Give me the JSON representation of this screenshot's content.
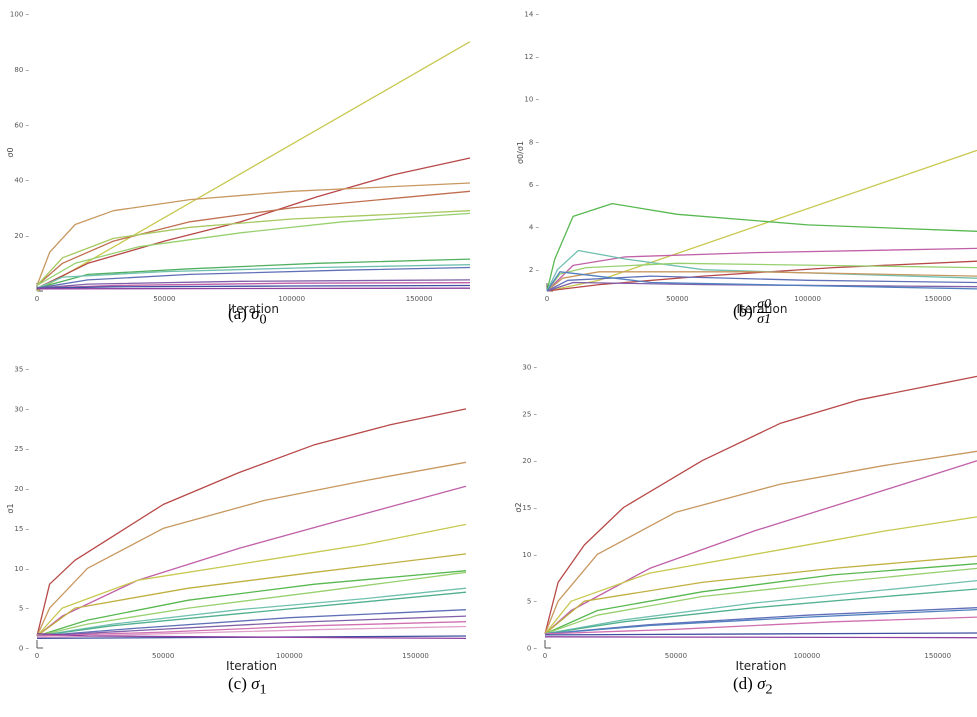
{
  "chart_data": [
    {
      "id": "a",
      "type": "line",
      "caption_prefix": "(a) ",
      "caption_symbol": "σ",
      "caption_sub": "0",
      "ylabel": "σ0",
      "xlabel": "Iteration",
      "xlim": [
        0,
        170000
      ],
      "ylim": [
        0,
        100
      ],
      "xticks": [
        0,
        50000,
        100000,
        150000
      ],
      "yticks": [
        20,
        40,
        60,
        80,
        100
      ],
      "series": [
        {
          "color": "#c8c850",
          "x": [
            0,
            170000
          ],
          "y": [
            0,
            90
          ]
        },
        {
          "color": "#b84848",
          "x": [
            0,
            20000,
            50000,
            80000,
            110000,
            140000,
            170000
          ],
          "y": [
            1,
            10,
            18,
            25,
            34,
            42,
            48
          ]
        },
        {
          "color": "#c89860",
          "x": [
            0,
            5000,
            15000,
            30000,
            60000,
            100000,
            170000
          ],
          "y": [
            2,
            14,
            24,
            29,
            33,
            36,
            39
          ]
        },
        {
          "color": "#c07050",
          "x": [
            0,
            10000,
            30000,
            60000,
            100000,
            170000
          ],
          "y": [
            2,
            10,
            18,
            25,
            30,
            36
          ]
        },
        {
          "color": "#a8c860",
          "x": [
            0,
            10000,
            30000,
            60000,
            100000,
            170000
          ],
          "y": [
            2,
            12,
            19,
            23,
            26,
            29
          ]
        },
        {
          "color": "#98d070",
          "x": [
            0,
            15000,
            40000,
            80000,
            120000,
            170000
          ],
          "y": [
            2,
            10,
            16,
            21,
            25,
            28
          ]
        },
        {
          "color": "#50b060",
          "x": [
            0,
            20000,
            60000,
            110000,
            170000
          ],
          "y": [
            1,
            6,
            8,
            10,
            11.5
          ]
        },
        {
          "color": "#70c0b0",
          "x": [
            0,
            10000,
            50000,
            110000,
            170000
          ],
          "y": [
            1,
            5,
            7,
            8.5,
            9.5
          ]
        },
        {
          "color": "#6070b8",
          "x": [
            0,
            20000,
            60000,
            120000,
            170000
          ],
          "y": [
            1,
            4,
            6,
            7.5,
            8.5
          ]
        },
        {
          "color": "#8060a8",
          "x": [
            0,
            20000,
            80000,
            170000
          ],
          "y": [
            1,
            2.5,
            3.5,
            4
          ]
        },
        {
          "color": "#c060a8",
          "x": [
            0,
            30000,
            100000,
            170000
          ],
          "y": [
            1,
            2,
            2.8,
            3
          ]
        },
        {
          "color": "#4050a0",
          "x": [
            0,
            30000,
            100000,
            170000
          ],
          "y": [
            1,
            1.5,
            1.8,
            2
          ]
        },
        {
          "color": "#9040a0",
          "x": [
            0,
            170000
          ],
          "y": [
            0.8,
            1
          ]
        }
      ]
    },
    {
      "id": "b",
      "type": "line",
      "caption_prefix": "(b) ",
      "caption_num": "σ0",
      "caption_den": "σ1",
      "ylabel": "σ0/σ1",
      "xlabel": "Iteration",
      "xlim": [
        0,
        165000
      ],
      "ylim": [
        1,
        14
      ],
      "xticks": [
        0,
        50000,
        100000,
        150000
      ],
      "yticks": [
        2,
        4,
        6,
        8,
        10,
        12,
        14
      ],
      "series": [
        {
          "color": "#c8c850",
          "x": [
            0,
            20000,
            165000
          ],
          "y": [
            1,
            1.5,
            7.6
          ]
        },
        {
          "color": "#58b850",
          "x": [
            0,
            3000,
            10000,
            25000,
            50000,
            100000,
            165000
          ],
          "y": [
            1,
            2.5,
            4.5,
            5.1,
            4.6,
            4.1,
            3.8
          ]
        },
        {
          "color": "#c060a8",
          "x": [
            0,
            10000,
            30000,
            80000,
            165000
          ],
          "y": [
            1,
            2.2,
            2.6,
            2.8,
            3.0
          ]
        },
        {
          "color": "#b84848",
          "x": [
            0,
            20000,
            60000,
            110000,
            165000
          ],
          "y": [
            1,
            1.3,
            1.7,
            2.1,
            2.4
          ]
        },
        {
          "color": "#70c0b0",
          "x": [
            0,
            4000,
            12000,
            30000,
            60000,
            165000
          ],
          "y": [
            1,
            2.0,
            2.9,
            2.5,
            2.0,
            1.6
          ]
        },
        {
          "color": "#98d070",
          "x": [
            0,
            5000,
            15000,
            50000,
            165000
          ],
          "y": [
            1,
            1.8,
            2.1,
            2.3,
            2.1
          ]
        },
        {
          "color": "#c89860",
          "x": [
            0,
            6000,
            20000,
            80000,
            165000
          ],
          "y": [
            1,
            1.6,
            1.9,
            1.9,
            1.7
          ]
        },
        {
          "color": "#6070b8",
          "x": [
            0,
            8000,
            40000,
            100000,
            165000
          ],
          "y": [
            1,
            1.5,
            1.7,
            1.5,
            1.4
          ]
        },
        {
          "color": "#8060a8",
          "x": [
            0,
            10000,
            60000,
            165000
          ],
          "y": [
            1,
            1.4,
            1.3,
            1.2
          ]
        },
        {
          "color": "#5080c0",
          "x": [
            0,
            5000,
            40000,
            165000
          ],
          "y": [
            1,
            1.9,
            1.4,
            1.1
          ]
        }
      ]
    },
    {
      "id": "c",
      "type": "line",
      "caption_prefix": "(c) ",
      "caption_symbol": "σ",
      "caption_sub": "1",
      "ylabel": "σ1",
      "xlabel": "Iteration",
      "xlim": [
        0,
        170000
      ],
      "ylim": [
        0,
        35
      ],
      "xticks": [
        0,
        50000,
        100000,
        150000
      ],
      "yticks": [
        0,
        5,
        10,
        15,
        20,
        25,
        30,
        35
      ],
      "series": [
        {
          "color": "#b84848",
          "x": [
            0,
            5000,
            15000,
            30000,
            50000,
            80000,
            110000,
            140000,
            170000
          ],
          "y": [
            1.5,
            8,
            11,
            14,
            18,
            22,
            25.5,
            28,
            30
          ]
        },
        {
          "color": "#c89860",
          "x": [
            0,
            5000,
            20000,
            50000,
            90000,
            130000,
            170000
          ],
          "y": [
            1.5,
            5,
            10,
            15,
            18.5,
            21,
            23.3
          ]
        },
        {
          "color": "#c060a8",
          "x": [
            0,
            10000,
            40000,
            80000,
            120000,
            170000
          ],
          "y": [
            1.5,
            4,
            8.5,
            12.5,
            16,
            20.3
          ]
        },
        {
          "color": "#c8c850",
          "x": [
            0,
            10000,
            40000,
            90000,
            130000,
            170000
          ],
          "y": [
            1.5,
            5,
            8.5,
            11,
            13,
            15.5
          ]
        },
        {
          "color": "#c0b040",
          "x": [
            0,
            15000,
            60000,
            110000,
            170000
          ],
          "y": [
            1.5,
            5,
            7.5,
            9.5,
            11.8
          ]
        },
        {
          "color": "#58b850",
          "x": [
            0,
            20000,
            60000,
            110000,
            170000
          ],
          "y": [
            1.5,
            3.5,
            6,
            8,
            9.7
          ]
        },
        {
          "color": "#98d070",
          "x": [
            0,
            20000,
            60000,
            110000,
            170000
          ],
          "y": [
            1.5,
            3,
            5,
            7,
            9.5
          ]
        },
        {
          "color": "#70c0b0",
          "x": [
            0,
            30000,
            80000,
            130000,
            170000
          ],
          "y": [
            1.5,
            3,
            4.8,
            6.2,
            7.5
          ]
        },
        {
          "color": "#50b090",
          "x": [
            0,
            30000,
            80000,
            130000,
            170000
          ],
          "y": [
            1.5,
            2.8,
            4.3,
            5.8,
            7
          ]
        },
        {
          "color": "#6070b8",
          "x": [
            0,
            40000,
            100000,
            170000
          ],
          "y": [
            1.5,
            2.5,
            3.8,
            4.8
          ]
        },
        {
          "color": "#8060a8",
          "x": [
            0,
            40000,
            100000,
            170000
          ],
          "y": [
            1.5,
            2.2,
            3.2,
            4
          ]
        },
        {
          "color": "#d070b0",
          "x": [
            0,
            50000,
            110000,
            170000
          ],
          "y": [
            1.5,
            2,
            2.8,
            3.3
          ]
        },
        {
          "color": "#e0a0c8",
          "x": [
            0,
            50000,
            110000,
            170000
          ],
          "y": [
            1.3,
            1.8,
            2.3,
            2.7
          ]
        },
        {
          "color": "#4050a0",
          "x": [
            0,
            170000
          ],
          "y": [
            1.2,
            1.5
          ]
        },
        {
          "color": "#9040a0",
          "x": [
            0,
            20000,
            170000
          ],
          "y": [
            1.8,
            1.5,
            1.2
          ]
        }
      ]
    },
    {
      "id": "d",
      "type": "line",
      "caption_prefix": "(d) ",
      "caption_symbol": "σ",
      "caption_sub": "2",
      "ylabel": "σ2",
      "xlabel": "Iteration",
      "xlim": [
        0,
        165000
      ],
      "ylim": [
        0,
        30
      ],
      "xticks": [
        0,
        50000,
        100000,
        150000
      ],
      "yticks": [
        0,
        5,
        10,
        15,
        20,
        25,
        30
      ],
      "series": [
        {
          "color": "#b84848",
          "x": [
            0,
            5000,
            15000,
            30000,
            60000,
            90000,
            120000,
            165000
          ],
          "y": [
            1.5,
            7,
            11,
            15,
            20,
            24,
            26.5,
            29
          ]
        },
        {
          "color": "#c89860",
          "x": [
            0,
            5000,
            20000,
            50000,
            90000,
            130000,
            165000
          ],
          "y": [
            1.5,
            5,
            10,
            14.5,
            17.5,
            19.5,
            21
          ]
        },
        {
          "color": "#c060a8",
          "x": [
            0,
            10000,
            40000,
            80000,
            120000,
            165000
          ],
          "y": [
            1.5,
            4,
            8.5,
            12.5,
            16,
            20
          ]
        },
        {
          "color": "#c8c850",
          "x": [
            0,
            10000,
            40000,
            90000,
            130000,
            165000
          ],
          "y": [
            1.5,
            5,
            8,
            10.5,
            12.5,
            14
          ]
        },
        {
          "color": "#c0b040",
          "x": [
            0,
            15000,
            60000,
            110000,
            165000
          ],
          "y": [
            1.5,
            5,
            7,
            8.5,
            9.8
          ]
        },
        {
          "color": "#58b850",
          "x": [
            0,
            20000,
            60000,
            110000,
            165000
          ],
          "y": [
            1.5,
            4,
            6,
            7.8,
            9
          ]
        },
        {
          "color": "#98d070",
          "x": [
            0,
            20000,
            60000,
            110000,
            165000
          ],
          "y": [
            1.5,
            3.5,
            5.5,
            7,
            8.5
          ]
        },
        {
          "color": "#70c0b0",
          "x": [
            0,
            30000,
            80000,
            130000,
            165000
          ],
          "y": [
            1.5,
            3,
            4.8,
            6.2,
            7.2
          ]
        },
        {
          "color": "#50b090",
          "x": [
            0,
            30000,
            80000,
            130000,
            165000
          ],
          "y": [
            1.5,
            2.8,
            4.3,
            5.5,
            6.3
          ]
        },
        {
          "color": "#6070b8",
          "x": [
            0,
            40000,
            100000,
            165000
          ],
          "y": [
            1.5,
            2.5,
            3.5,
            4.3
          ]
        },
        {
          "color": "#5080c0",
          "x": [
            0,
            40000,
            100000,
            165000
          ],
          "y": [
            1.5,
            2.4,
            3.3,
            4.1
          ]
        },
        {
          "color": "#d070b0",
          "x": [
            0,
            50000,
            110000,
            165000
          ],
          "y": [
            1.5,
            2,
            2.8,
            3.3
          ]
        },
        {
          "color": "#4050a0",
          "x": [
            0,
            165000
          ],
          "y": [
            1.4,
            1.6
          ]
        },
        {
          "color": "#9040a0",
          "x": [
            0,
            165000
          ],
          "y": [
            1.2,
            1.1
          ]
        }
      ]
    }
  ]
}
